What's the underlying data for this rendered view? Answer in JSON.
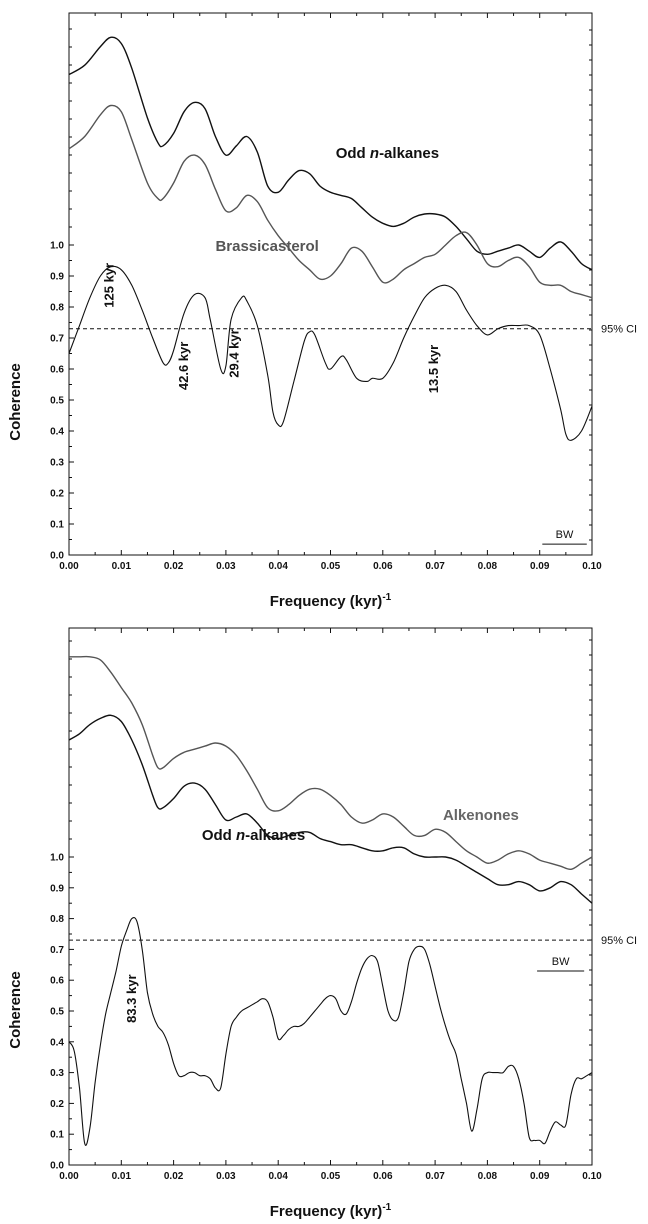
{
  "chart_data": [
    {
      "type": "line",
      "xlabel": "Frequency (kyr)",
      "xlabel_superscript": "-1",
      "ylabel": "Coherence",
      "xlim": [
        0,
        0.1
      ],
      "ylim": [
        0,
        1.0
      ],
      "xticks": [
        "0.00",
        "0.01",
        "0.02",
        "0.03",
        "0.04",
        "0.05",
        "0.06",
        "0.07",
        "0.08",
        "0.09",
        "0.10"
      ],
      "yticks": [
        "0.0",
        "0.1",
        "0.2",
        "0.3",
        "0.4",
        "0.5",
        "0.6",
        "0.7",
        "0.8",
        "0.9",
        "1.0"
      ],
      "ci_value": 0.73,
      "ci_label": "95% CI",
      "bw_label": "BW",
      "bw_range": [
        0.0905,
        0.099
      ],
      "spectra": [
        {
          "name": "Odd n-alkanes",
          "label_parts": [
            "Odd ",
            "n",
            "-alkanes"
          ],
          "color": "#111111",
          "x": [
            0,
            0.003,
            0.006,
            0.008,
            0.01,
            0.012,
            0.015,
            0.017,
            0.018,
            0.02,
            0.022,
            0.024,
            0.026,
            0.028,
            0.03,
            0.032,
            0.034,
            0.036,
            0.038,
            0.04,
            0.042,
            0.044,
            0.046,
            0.048,
            0.05,
            0.052,
            0.054,
            0.056,
            0.058,
            0.06,
            0.062,
            0.064,
            0.066,
            0.068,
            0.07,
            0.072,
            0.074,
            0.076,
            0.078,
            0.08,
            0.082,
            0.084,
            0.086,
            0.088,
            0.09,
            0.092,
            0.094,
            0.096,
            0.098,
            0.1
          ],
          "y": [
            1.55,
            1.58,
            1.64,
            1.67,
            1.65,
            1.57,
            1.41,
            1.33,
            1.32,
            1.36,
            1.43,
            1.46,
            1.44,
            1.35,
            1.29,
            1.32,
            1.35,
            1.3,
            1.19,
            1.17,
            1.21,
            1.24,
            1.23,
            1.19,
            1.17,
            1.16,
            1.15,
            1.12,
            1.09,
            1.07,
            1.06,
            1.07,
            1.09,
            1.1,
            1.1,
            1.09,
            1.06,
            1.02,
            0.98,
            0.97,
            0.98,
            0.99,
            1.0,
            0.98,
            0.96,
            0.99,
            1.01,
            0.98,
            0.94,
            0.92
          ]
        },
        {
          "name": "Brassicasterol",
          "color": "#555555",
          "x": [
            0,
            0.003,
            0.006,
            0.008,
            0.01,
            0.012,
            0.015,
            0.017,
            0.018,
            0.02,
            0.022,
            0.024,
            0.026,
            0.028,
            0.03,
            0.032,
            0.034,
            0.036,
            0.038,
            0.04,
            0.042,
            0.044,
            0.046,
            0.048,
            0.05,
            0.052,
            0.054,
            0.056,
            0.058,
            0.06,
            0.062,
            0.064,
            0.066,
            0.068,
            0.07,
            0.072,
            0.074,
            0.076,
            0.078,
            0.08,
            0.082,
            0.084,
            0.086,
            0.088,
            0.09,
            0.092,
            0.094,
            0.096,
            0.098,
            0.1
          ],
          "y": [
            1.31,
            1.35,
            1.42,
            1.45,
            1.43,
            1.34,
            1.2,
            1.15,
            1.15,
            1.2,
            1.27,
            1.29,
            1.26,
            1.18,
            1.11,
            1.12,
            1.16,
            1.14,
            1.08,
            1.03,
            0.99,
            0.95,
            0.92,
            0.89,
            0.9,
            0.94,
            0.99,
            0.98,
            0.93,
            0.88,
            0.89,
            0.92,
            0.94,
            0.96,
            0.97,
            1.0,
            1.03,
            1.04,
            1.0,
            0.94,
            0.93,
            0.95,
            0.96,
            0.93,
            0.88,
            0.87,
            0.87,
            0.85,
            0.84,
            0.83
          ]
        },
        {
          "name": "Coherence",
          "color": "#111111",
          "x": [
            0,
            0.002,
            0.004,
            0.006,
            0.008,
            0.01,
            0.012,
            0.014,
            0.016,
            0.018,
            0.019,
            0.02,
            0.022,
            0.024,
            0.026,
            0.027,
            0.029,
            0.03,
            0.031,
            0.033,
            0.034,
            0.036,
            0.038,
            0.039,
            0.04,
            0.041,
            0.043,
            0.045,
            0.046,
            0.047,
            0.049,
            0.05,
            0.052,
            0.053,
            0.055,
            0.057,
            0.058,
            0.06,
            0.062,
            0.064,
            0.066,
            0.068,
            0.07,
            0.072,
            0.074,
            0.076,
            0.078,
            0.08,
            0.082,
            0.084,
            0.086,
            0.088,
            0.09,
            0.092,
            0.094,
            0.095,
            0.096,
            0.098,
            0.1
          ],
          "y": [
            0.65,
            0.74,
            0.83,
            0.9,
            0.93,
            0.92,
            0.87,
            0.79,
            0.7,
            0.62,
            0.62,
            0.66,
            0.78,
            0.84,
            0.83,
            0.76,
            0.6,
            0.61,
            0.76,
            0.83,
            0.82,
            0.74,
            0.58,
            0.46,
            0.42,
            0.43,
            0.56,
            0.69,
            0.72,
            0.71,
            0.62,
            0.6,
            0.64,
            0.63,
            0.57,
            0.56,
            0.57,
            0.57,
            0.62,
            0.7,
            0.77,
            0.83,
            0.86,
            0.87,
            0.85,
            0.79,
            0.74,
            0.71,
            0.73,
            0.74,
            0.74,
            0.74,
            0.71,
            0.6,
            0.47,
            0.39,
            0.37,
            0.4,
            0.48
          ]
        }
      ],
      "series_labels": [
        {
          "key": "odd",
          "text_parts": [
            "Odd ",
            "n",
            "-alkanes"
          ],
          "color": "#111111",
          "pos": [
            0.051,
            1.28
          ]
        },
        {
          "key": "bras",
          "text": "Brassicasterol",
          "color": "#555555",
          "pos": [
            0.028,
            0.98
          ]
        }
      ],
      "peaks": [
        {
          "label": "125 kyr",
          "x": 0.0085,
          "y": 0.87
        },
        {
          "label": "42.6 kyr",
          "x": 0.0228,
          "y": 0.61
        },
        {
          "label": "29.4 kyr",
          "x": 0.0324,
          "y": 0.65
        },
        {
          "label": "13.5 kyr",
          "x": 0.0706,
          "y": 0.6
        }
      ]
    },
    {
      "type": "line",
      "xlabel": "Frequency (kyr)",
      "xlabel_superscript": "-1",
      "ylabel": "Coherence",
      "xlim": [
        0,
        0.1
      ],
      "ylim": [
        0,
        1.0
      ],
      "xticks": [
        "0.00",
        "0.01",
        "0.02",
        "0.03",
        "0.04",
        "0.05",
        "0.06",
        "0.07",
        "0.08",
        "0.09",
        "0.10"
      ],
      "yticks": [
        "0.0",
        "0.1",
        "0.2",
        "0.3",
        "0.4",
        "0.5",
        "0.6",
        "0.7",
        "0.8",
        "0.9",
        "1.0"
      ],
      "ci_value": 0.73,
      "ci_label": "95% CI",
      "bw_label": "BW",
      "bw_range": [
        0.0895,
        0.0985
      ],
      "spectra": [
        {
          "name": "Alkenones",
          "color": "#555555",
          "x": [
            0,
            0.002,
            0.004,
            0.006,
            0.008,
            0.01,
            0.012,
            0.014,
            0.016,
            0.017,
            0.018,
            0.02,
            0.022,
            0.024,
            0.026,
            0.028,
            0.03,
            0.032,
            0.034,
            0.036,
            0.038,
            0.04,
            0.042,
            0.044,
            0.046,
            0.048,
            0.05,
            0.052,
            0.054,
            0.056,
            0.058,
            0.06,
            0.062,
            0.064,
            0.066,
            0.068,
            0.07,
            0.072,
            0.074,
            0.076,
            0.078,
            0.08,
            0.082,
            0.084,
            0.086,
            0.088,
            0.09,
            0.092,
            0.094,
            0.096,
            0.098,
            0.1
          ],
          "y": [
            1.65,
            1.65,
            1.65,
            1.64,
            1.6,
            1.55,
            1.5,
            1.43,
            1.33,
            1.29,
            1.29,
            1.32,
            1.34,
            1.35,
            1.36,
            1.37,
            1.36,
            1.33,
            1.28,
            1.22,
            1.16,
            1.15,
            1.17,
            1.2,
            1.22,
            1.22,
            1.2,
            1.17,
            1.13,
            1.11,
            1.12,
            1.14,
            1.13,
            1.1,
            1.07,
            1.07,
            1.09,
            1.08,
            1.05,
            1.02,
            1.0,
            0.98,
            0.99,
            1.01,
            1.02,
            1.01,
            0.99,
            0.98,
            0.97,
            0.96,
            0.98,
            1.0
          ]
        },
        {
          "name": "Odd n-alkanes",
          "label_parts": [
            "Odd ",
            "n",
            "-alkanes"
          ],
          "color": "#111111",
          "x": [
            0,
            0.002,
            0.004,
            0.006,
            0.008,
            0.01,
            0.012,
            0.014,
            0.016,
            0.017,
            0.018,
            0.02,
            0.022,
            0.024,
            0.026,
            0.028,
            0.03,
            0.032,
            0.034,
            0.036,
            0.038,
            0.04,
            0.042,
            0.044,
            0.046,
            0.048,
            0.05,
            0.052,
            0.054,
            0.056,
            0.058,
            0.06,
            0.062,
            0.064,
            0.066,
            0.068,
            0.07,
            0.072,
            0.074,
            0.076,
            0.078,
            0.08,
            0.082,
            0.084,
            0.086,
            0.088,
            0.09,
            0.092,
            0.094,
            0.096,
            0.098,
            0.1
          ],
          "y": [
            1.38,
            1.4,
            1.43,
            1.45,
            1.46,
            1.44,
            1.38,
            1.3,
            1.2,
            1.16,
            1.16,
            1.19,
            1.23,
            1.24,
            1.22,
            1.17,
            1.12,
            1.13,
            1.14,
            1.11,
            1.07,
            1.06,
            1.07,
            1.08,
            1.08,
            1.06,
            1.05,
            1.04,
            1.04,
            1.03,
            1.02,
            1.02,
            1.03,
            1.03,
            1.01,
            1.0,
            1.0,
            1.0,
            0.99,
            0.97,
            0.95,
            0.93,
            0.91,
            0.91,
            0.92,
            0.91,
            0.89,
            0.9,
            0.92,
            0.91,
            0.88,
            0.85
          ]
        },
        {
          "name": "Coherence",
          "color": "#111111",
          "x": [
            0,
            0.001,
            0.002,
            0.003,
            0.004,
            0.005,
            0.006,
            0.007,
            0.008,
            0.009,
            0.01,
            0.011,
            0.012,
            0.013,
            0.014,
            0.015,
            0.016,
            0.017,
            0.018,
            0.019,
            0.02,
            0.021,
            0.022,
            0.023,
            0.024,
            0.025,
            0.026,
            0.027,
            0.028,
            0.029,
            0.03,
            0.031,
            0.032,
            0.033,
            0.034,
            0.035,
            0.036,
            0.037,
            0.038,
            0.039,
            0.04,
            0.041,
            0.042,
            0.043,
            0.044,
            0.045,
            0.046,
            0.047,
            0.048,
            0.049,
            0.05,
            0.051,
            0.052,
            0.053,
            0.054,
            0.055,
            0.056,
            0.057,
            0.058,
            0.059,
            0.06,
            0.061,
            0.062,
            0.063,
            0.064,
            0.065,
            0.066,
            0.067,
            0.068,
            0.069,
            0.07,
            0.071,
            0.072,
            0.073,
            0.074,
            0.075,
            0.076,
            0.077,
            0.078,
            0.079,
            0.08,
            0.081,
            0.082,
            0.083,
            0.084,
            0.085,
            0.086,
            0.087,
            0.088,
            0.089,
            0.09,
            0.091,
            0.092,
            0.093,
            0.094,
            0.095,
            0.096,
            0.097,
            0.098,
            0.099,
            0.1
          ],
          "y": [
            0.4,
            0.37,
            0.25,
            0.07,
            0.12,
            0.27,
            0.39,
            0.49,
            0.56,
            0.63,
            0.71,
            0.76,
            0.8,
            0.79,
            0.7,
            0.56,
            0.49,
            0.45,
            0.43,
            0.39,
            0.33,
            0.29,
            0.29,
            0.3,
            0.3,
            0.29,
            0.29,
            0.28,
            0.25,
            0.25,
            0.36,
            0.45,
            0.48,
            0.5,
            0.51,
            0.52,
            0.53,
            0.54,
            0.53,
            0.48,
            0.41,
            0.42,
            0.44,
            0.45,
            0.45,
            0.46,
            0.48,
            0.5,
            0.52,
            0.54,
            0.55,
            0.54,
            0.5,
            0.49,
            0.53,
            0.59,
            0.64,
            0.67,
            0.68,
            0.66,
            0.58,
            0.5,
            0.47,
            0.48,
            0.56,
            0.66,
            0.7,
            0.71,
            0.7,
            0.65,
            0.58,
            0.51,
            0.45,
            0.4,
            0.36,
            0.28,
            0.2,
            0.11,
            0.18,
            0.28,
            0.3,
            0.3,
            0.3,
            0.3,
            0.32,
            0.32,
            0.28,
            0.2,
            0.09,
            0.08,
            0.08,
            0.07,
            0.11,
            0.14,
            0.13,
            0.13,
            0.23,
            0.28,
            0.28,
            0.29,
            0.3
          ]
        }
      ],
      "series_labels": [
        {
          "key": "alk",
          "text": "Alkenones",
          "color": "#666666",
          "pos": [
            0.0715,
            1.12
          ]
        },
        {
          "key": "odd",
          "text_parts": [
            "Odd ",
            "n",
            "-alkanes"
          ],
          "color": "#111111",
          "pos": [
            0.0254,
            1.055
          ]
        }
      ],
      "peaks": [
        {
          "label": "83.3 kyr",
          "x": 0.0128,
          "y": 0.54
        }
      ]
    }
  ]
}
